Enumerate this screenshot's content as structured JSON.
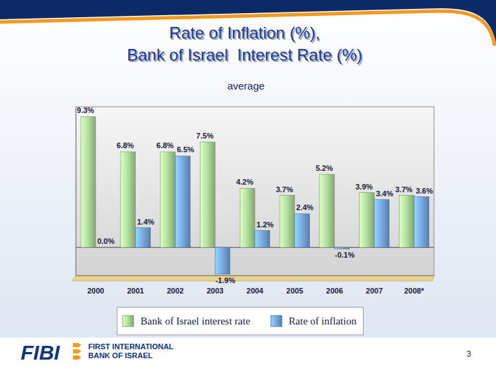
{
  "chart_data": {
    "type": "bar",
    "title": [
      "Rate of Inflation (%),",
      "Bank of Israel  Interest Rate (%)"
    ],
    "subtitle": "average",
    "categories": [
      "2000",
      "2001",
      "2002",
      "2003",
      "2004",
      "2005",
      "2006",
      "2007",
      "2008*"
    ],
    "series": [
      {
        "name": "Bank of Israel interest rate",
        "color": "#b5e3a0",
        "values": [
          9.3,
          6.8,
          6.8,
          7.5,
          4.2,
          3.7,
          5.2,
          3.9,
          3.7
        ],
        "value_labels": [
          "9.3%",
          "6.8%",
          "6.8%",
          "7.5%",
          "4.2%",
          "3.7%",
          "5.2%",
          "3.9%",
          "3.7%"
        ]
      },
      {
        "name": "Rate of inflation",
        "color": "#7aaee6",
        "values": [
          0.0,
          1.4,
          6.5,
          -1.9,
          1.2,
          2.4,
          -0.1,
          3.4,
          3.6
        ],
        "value_labels": [
          "0.0%",
          "1.4%",
          "6.5%",
          "-1.9%",
          "1.2%",
          "2.4%",
          "-0.1%",
          "3.4%",
          "3.6%"
        ]
      }
    ],
    "ylim": [
      -2,
      10
    ],
    "tick_labels": "x",
    "data_labels": true,
    "legend": "bottom"
  },
  "footer": {
    "logo": "FIBI",
    "bank_name": [
      "FIRST INTERNATIONAL",
      "BANK OF ISRAEL"
    ],
    "page_number": 3
  }
}
